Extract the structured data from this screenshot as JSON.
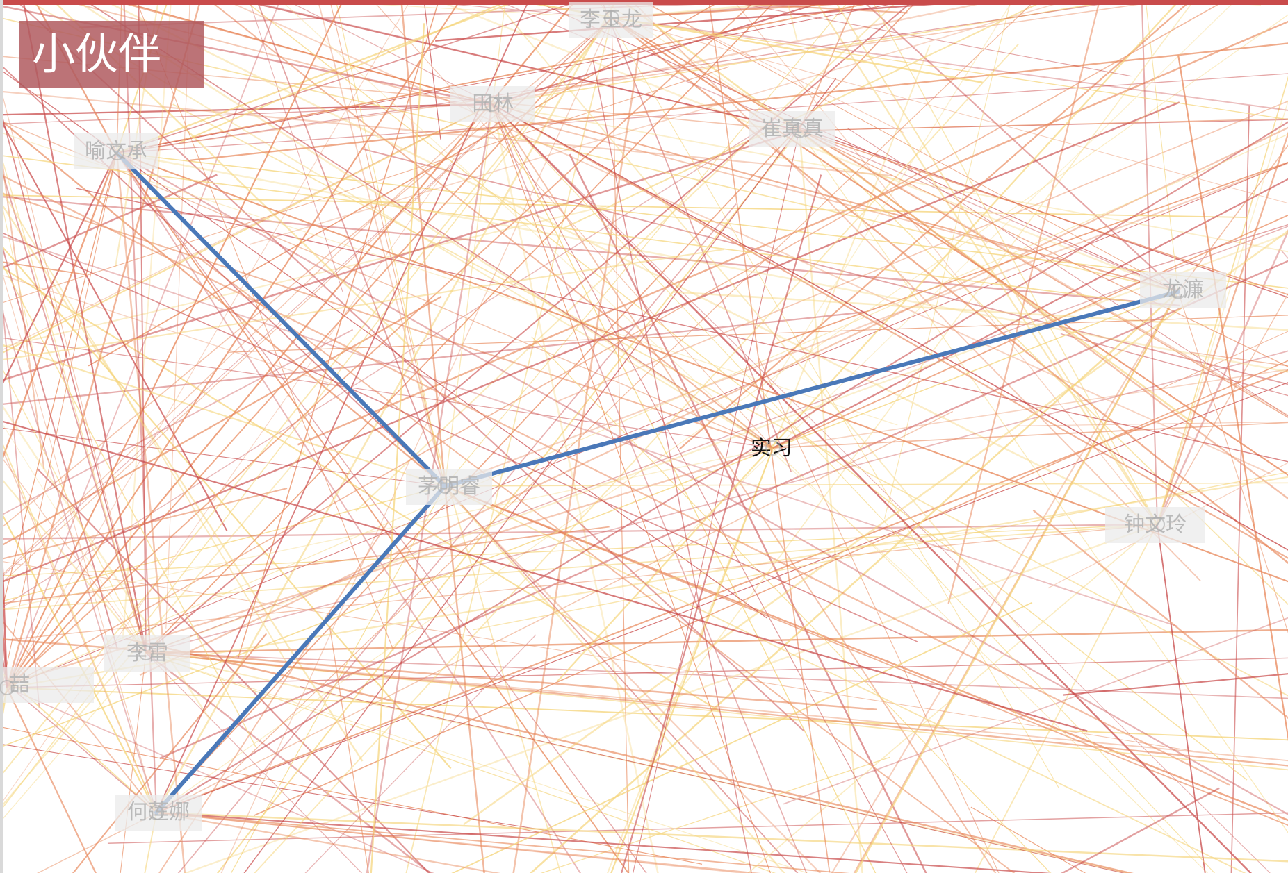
{
  "title": "小伙伴",
  "colors": {
    "edge_dark": "#c94b4b",
    "edge_mid": "#e8875a",
    "edge_light": "#f5d57c",
    "highlight": "#4a78b8",
    "label_bg": "#ebebeb",
    "label_text": "#b9b9b9"
  },
  "nodes": [
    {
      "id": "yu",
      "label": "喻文承"
    },
    {
      "id": "li_yl",
      "label": "李玉龙"
    },
    {
      "id": "tian",
      "label": "田林"
    },
    {
      "id": "cui",
      "label": "崔真真"
    },
    {
      "id": "long",
      "label": "龙濂"
    },
    {
      "id": "shixi",
      "label": "实习"
    },
    {
      "id": "mao",
      "label": "茅明睿"
    },
    {
      "id": "zhong",
      "label": "钟文玲"
    },
    {
      "id": "li_lei",
      "label": "李雷"
    },
    {
      "id": "jie",
      "label": "喆"
    },
    {
      "id": "he",
      "label": "何莲娜"
    }
  ],
  "highlight_edges": [
    {
      "from": "mao",
      "to": "yu"
    },
    {
      "from": "mao",
      "to": "long"
    },
    {
      "from": "mao",
      "to": "he"
    }
  ]
}
